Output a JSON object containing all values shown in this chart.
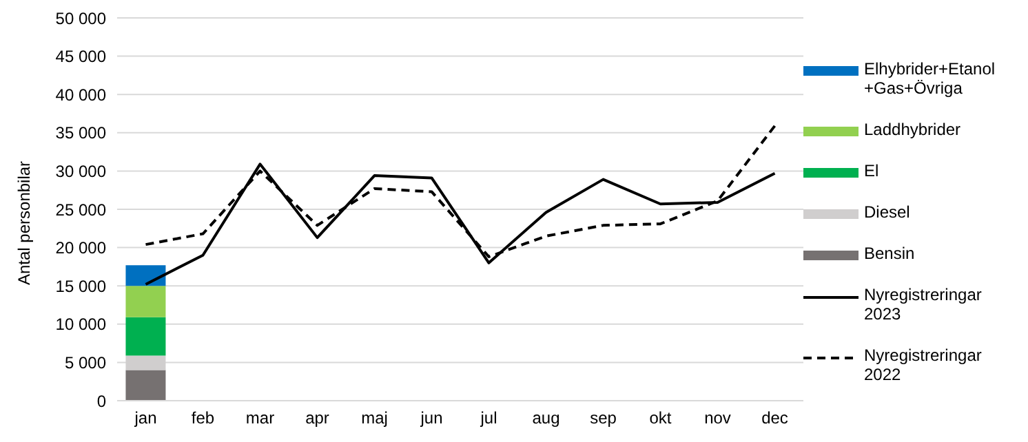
{
  "chart_data": {
    "type": "bar",
    "ylabel": "Antal personbilar",
    "stacked": true,
    "grid": "y",
    "legend": "right",
    "categories": [
      "jan",
      "feb",
      "mar",
      "apr",
      "maj",
      "jun",
      "jul",
      "aug",
      "sep",
      "okt",
      "nov",
      "dec"
    ],
    "ylim": [
      0,
      50000
    ],
    "yticks": [
      {
        "value": 0,
        "label": "0"
      },
      {
        "value": 5000,
        "label": "5 000"
      },
      {
        "value": 10000,
        "label": "10 000"
      },
      {
        "value": 15000,
        "label": "15 000"
      },
      {
        "value": 20000,
        "label": "20 000"
      },
      {
        "value": 25000,
        "label": "25 000"
      },
      {
        "value": 30000,
        "label": "30 000"
      },
      {
        "value": 35000,
        "label": "35 000"
      },
      {
        "value": 40000,
        "label": "40 000"
      },
      {
        "value": 45000,
        "label": "45 000"
      },
      {
        "value": 50000,
        "label": "50 000"
      }
    ],
    "series": [
      {
        "name": "Bensin",
        "color": "#767171",
        "values": [
          4000,
          null,
          null,
          null,
          null,
          null,
          null,
          null,
          null,
          null,
          null,
          null
        ]
      },
      {
        "name": "Diesel",
        "color": "#d0cece",
        "values": [
          1900,
          null,
          null,
          null,
          null,
          null,
          null,
          null,
          null,
          null,
          null,
          null
        ]
      },
      {
        "name": "El",
        "color": "#00b050",
        "values": [
          5000,
          null,
          null,
          null,
          null,
          null,
          null,
          null,
          null,
          null,
          null,
          null
        ]
      },
      {
        "name": "Laddhybrider",
        "color": "#92d050",
        "values": [
          4100,
          null,
          null,
          null,
          null,
          null,
          null,
          null,
          null,
          null,
          null,
          null
        ]
      },
      {
        "name": "Elhybrider+Etanol+Gas+Övriga",
        "color": "#0070c0",
        "values": [
          2700,
          null,
          null,
          null,
          null,
          null,
          null,
          null,
          null,
          null,
          null,
          null
        ]
      },
      {
        "name": "Nyregistreringar 2023",
        "type": "line",
        "line_style": "solid",
        "color": "#000000",
        "values": [
          15200,
          19000,
          30900,
          21300,
          29400,
          29100,
          18000,
          24600,
          28900,
          25700,
          25900,
          29700
        ]
      },
      {
        "name": "Nyregistreringar 2022",
        "type": "line",
        "line_style": "dashed",
        "color": "#000000",
        "values": [
          20400,
          21800,
          30000,
          22900,
          27700,
          27300,
          18800,
          21500,
          22900,
          23100,
          26100,
          35900
        ]
      }
    ]
  }
}
